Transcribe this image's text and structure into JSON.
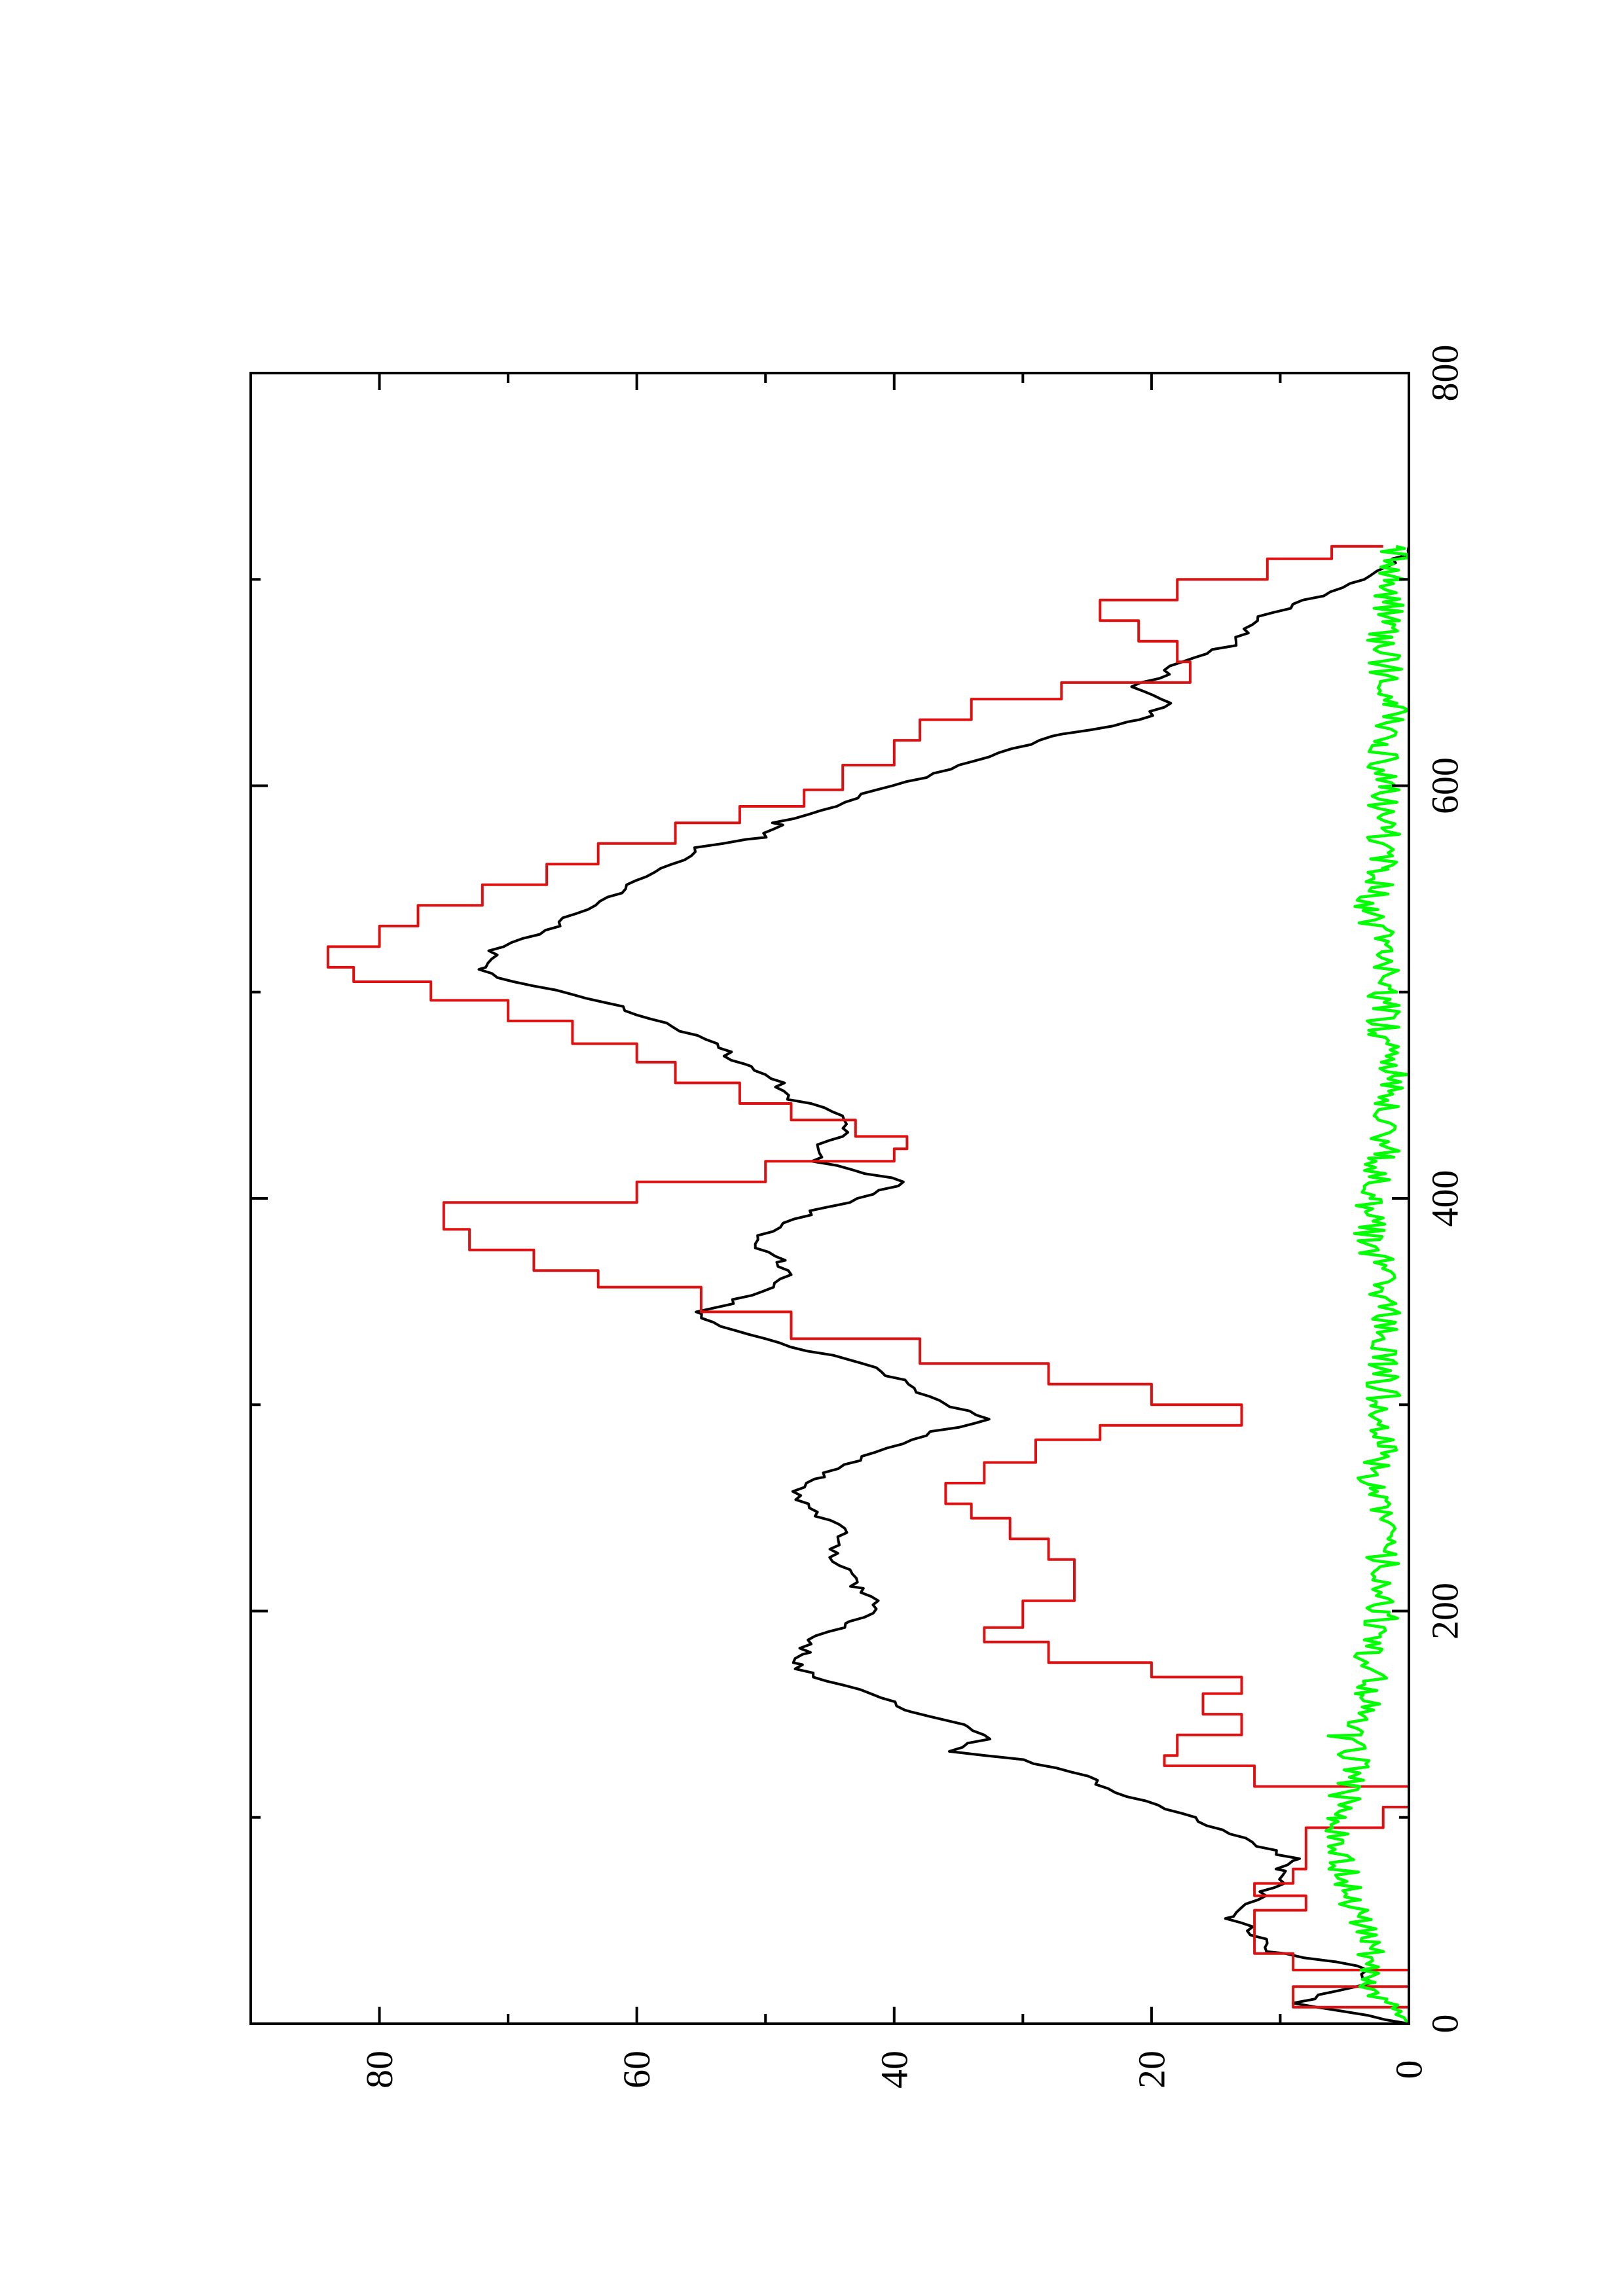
{
  "chart_data": {
    "type": "line",
    "title": "",
    "xlabel": "",
    "ylabel": "",
    "xlim": [
      0,
      800
    ],
    "ylim": [
      0,
      90
    ],
    "xticks": [
      0,
      200,
      400,
      600,
      800
    ],
    "yticks": [
      0,
      20,
      40,
      60,
      80
    ],
    "grid": false,
    "legend": "none",
    "series": [
      {
        "color": "#000000",
        "style": "noisy-line",
        "x": [
          0,
          10,
          20,
          28,
          35,
          45,
          52,
          60,
          68,
          75,
          80,
          90,
          100,
          110,
          120,
          128,
          132,
          138,
          145,
          152,
          160,
          168,
          175,
          180,
          188,
          195,
          205,
          212,
          220,
          230,
          240,
          250,
          258,
          265,
          275,
          285,
          293,
          300,
          310,
          320,
          330,
          340,
          345,
          355,
          363,
          370,
          380,
          390,
          400,
          408,
          418,
          424,
          432,
          440,
          448,
          456,
          465,
          475,
          485,
          495,
          505,
          512,
          520,
          530,
          540,
          550,
          560,
          570,
          575,
          582,
          590,
          600,
          612,
          625,
          632,
          640,
          648,
          658,
          668,
          680,
          690,
          700,
          708,
          716
        ],
        "y": [
          0,
          9,
          3,
          4,
          11,
          12,
          14,
          12,
          10,
          10,
          9,
          13,
          17,
          22,
          25,
          30,
          36,
          33,
          34,
          39,
          42,
          46,
          48,
          47,
          46,
          43,
          41,
          43,
          44,
          45,
          44,
          47,
          48,
          46,
          42,
          38,
          33,
          36,
          39,
          42,
          49,
          54,
          55,
          50,
          48,
          49,
          51,
          48,
          43,
          39,
          46,
          46,
          44,
          44,
          48,
          49,
          52,
          54,
          58,
          62,
          70,
          72,
          71,
          67,
          64,
          61,
          58,
          55,
          50,
          49,
          45,
          40,
          34,
          27,
          21,
          19,
          21,
          18,
          14,
          12,
          8,
          4,
          1,
          0
        ]
      },
      {
        "color": "#dd1111",
        "style": "stepped-line",
        "x": [
          0,
          8,
          18,
          26,
          34,
          44,
          55,
          62,
          68,
          75,
          85,
          95,
          105,
          115,
          125,
          130,
          140,
          150,
          160,
          168,
          175,
          185,
          192,
          205,
          215,
          225,
          235,
          245,
          252,
          262,
          272,
          283,
          290,
          300,
          310,
          320,
          332,
          345,
          357,
          365,
          375,
          385,
          398,
          408,
          418,
          424,
          430,
          438,
          446,
          456,
          466,
          475,
          486,
          496,
          505,
          512,
          522,
          532,
          542,
          552,
          562,
          572,
          582,
          590,
          598,
          610,
          622,
          632,
          642,
          650,
          660,
          670,
          680,
          690,
          700,
          710,
          716
        ],
        "y": [
          0,
          9,
          0,
          9,
          12,
          12,
          8,
          12,
          9,
          8,
          8,
          2,
          0,
          12,
          19,
          18,
          13,
          16,
          13,
          20,
          28,
          33,
          30,
          26,
          26,
          28,
          31,
          34,
          36,
          33,
          29,
          24,
          13,
          20,
          28,
          38,
          48,
          55,
          63,
          68,
          73,
          75,
          60,
          50,
          40,
          39,
          43,
          48,
          52,
          57,
          60,
          65,
          70,
          76,
          82,
          84,
          80,
          77,
          72,
          67,
          63,
          57,
          52,
          47,
          44,
          40,
          38,
          34,
          27,
          17,
          18,
          21,
          24,
          18,
          11,
          6,
          2
        ]
      },
      {
        "color": "#00ff00",
        "style": "noisy-line",
        "x": [
          0,
          20,
          40,
          60,
          80,
          100,
          120,
          140,
          160,
          180,
          200,
          220,
          240,
          260,
          280,
          300,
          320,
          340,
          360,
          380,
          400,
          420,
          440,
          460,
          480,
          500,
          520,
          540,
          560,
          580,
          600,
          620,
          640,
          660,
          680,
          700,
          716
        ],
        "y": [
          1,
          3,
          3,
          5,
          5,
          6,
          4,
          5,
          3,
          3,
          2,
          2,
          2,
          3,
          2,
          2,
          2,
          2,
          2,
          3,
          3,
          2,
          2,
          1,
          2,
          2,
          2,
          3,
          2,
          2,
          2,
          2,
          1,
          2,
          2,
          1,
          1
        ]
      }
    ]
  }
}
